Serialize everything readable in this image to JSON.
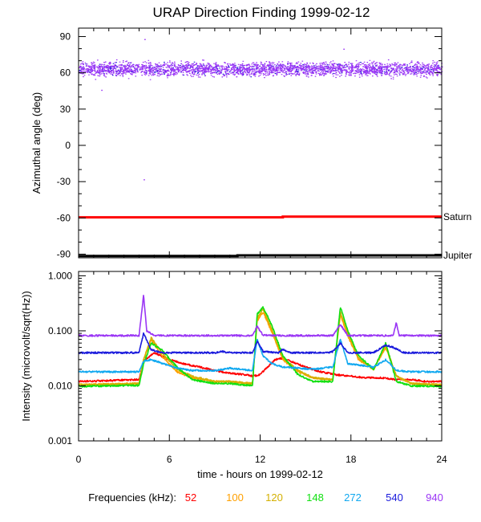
{
  "title": "URAP Direction Finding  1999-02-12",
  "chart_data": [
    {
      "type": "scatter",
      "panel": "azimuth",
      "ylabel": "Azimuthal angle (deg)",
      "xlim": [
        0,
        24
      ],
      "ylim": [
        -93,
        97
      ],
      "yticks": [
        90,
        60,
        30,
        0,
        -30,
        -60,
        -90
      ],
      "ytick_labels": [
        "90",
        "60",
        "30",
        "0",
        "-30",
        "-60",
        "-90"
      ],
      "series": [
        {
          "name": "940",
          "color": "#9a35f5",
          "mean": 63,
          "spread": 6
        },
        {
          "name": "540",
          "color": "#1a1adc",
          "mean": 63,
          "spread": 5
        }
      ],
      "reference_lines": [
        {
          "label": "Saturn",
          "color": "#ff0000",
          "x": [
            0,
            13.5,
            13.5,
            24
          ],
          "y": [
            -59.5,
            -59.5,
            -59,
            -59
          ]
        },
        {
          "label": "Jupiter",
          "color": "#000000",
          "x": [
            0,
            10.5,
            10.5,
            24
          ],
          "y": [
            -91.5,
            -91.5,
            -91,
            -91
          ]
        }
      ]
    },
    {
      "type": "line",
      "panel": "intensity",
      "ylabel": "Intensity (microvolt/sqrt(Hz))",
      "xlabel": "time - hours on 1999-02-12",
      "xlim": [
        0,
        24
      ],
      "xticks": [
        0,
        6,
        12,
        18,
        24
      ],
      "xtick_labels": [
        "0",
        "6",
        "12",
        "18",
        "24"
      ],
      "yscale": "log",
      "ylim": [
        0.001,
        1.2
      ],
      "yticks": [
        1,
        0.1,
        0.01,
        0.001
      ],
      "ytick_labels": [
        "1.000",
        "0.100",
        "0.010",
        "0.001"
      ],
      "legend_label": "Frequencies (kHz):",
      "series": [
        {
          "name": "52",
          "color": "#ff0000",
          "x": [
            0,
            4,
            4.3,
            5,
            6,
            7,
            8,
            9,
            10,
            11,
            11.5,
            12,
            12.5,
            13,
            13.5,
            14,
            15,
            16,
            17,
            18,
            19,
            20,
            21,
            22,
            23,
            24
          ],
          "y": [
            0.012,
            0.013,
            0.028,
            0.04,
            0.03,
            0.025,
            0.022,
            0.019,
            0.017,
            0.016,
            0.015,
            0.016,
            0.022,
            0.03,
            0.032,
            0.028,
            0.022,
            0.018,
            0.016,
            0.015,
            0.014,
            0.014,
            0.013,
            0.013,
            0.012,
            0.012
          ]
        },
        {
          "name": "100",
          "color": "#ffa000",
          "x": [
            0,
            4,
            4.3,
            4.8,
            5.5,
            6.5,
            7.5,
            9,
            10,
            11.5,
            11.8,
            12.2,
            12.8,
            13.5,
            14.5,
            15.5,
            16.8,
            17.3,
            17.8,
            18.5,
            19.5,
            20.3,
            21,
            22,
            24
          ],
          "y": [
            0.0105,
            0.011,
            0.03,
            0.07,
            0.035,
            0.018,
            0.014,
            0.012,
            0.012,
            0.011,
            0.15,
            0.22,
            0.09,
            0.03,
            0.018,
            0.014,
            0.013,
            0.2,
            0.08,
            0.03,
            0.02,
            0.05,
            0.015,
            0.011,
            0.0105
          ]
        },
        {
          "name": "120",
          "color": "#d4b000",
          "x": [
            0,
            4,
            4.3,
            4.8,
            5.5,
            6.5,
            7.5,
            9,
            10,
            11.5,
            11.8,
            12.2,
            12.8,
            13.5,
            14.5,
            15.5,
            16.8,
            17.3,
            17.8,
            18.5,
            19.5,
            20.3,
            21,
            22,
            24
          ],
          "y": [
            0.0105,
            0.011,
            0.03,
            0.075,
            0.04,
            0.02,
            0.015,
            0.012,
            0.012,
            0.011,
            0.17,
            0.25,
            0.1,
            0.032,
            0.019,
            0.014,
            0.013,
            0.22,
            0.09,
            0.032,
            0.02,
            0.055,
            0.015,
            0.011,
            0.0105
          ]
        },
        {
          "name": "148",
          "color": "#10e010",
          "x": [
            0,
            4,
            4.3,
            4.8,
            5.5,
            6.5,
            7.5,
            9,
            10,
            11.5,
            11.8,
            12.2,
            12.8,
            13.5,
            14.5,
            15.5,
            16.8,
            17.3,
            17.8,
            18.5,
            19.5,
            20.3,
            21,
            22,
            24
          ],
          "y": [
            0.0098,
            0.0102,
            0.025,
            0.06,
            0.045,
            0.022,
            0.013,
            0.011,
            0.011,
            0.01,
            0.2,
            0.27,
            0.12,
            0.035,
            0.016,
            0.012,
            0.012,
            0.27,
            0.1,
            0.035,
            0.02,
            0.06,
            0.012,
            0.01,
            0.0098
          ]
        },
        {
          "name": "272",
          "color": "#10a8f0",
          "x": [
            0,
            4,
            4.3,
            4.8,
            5.5,
            6.5,
            7.5,
            9,
            10,
            11.5,
            11.8,
            12.2,
            12.8,
            13.5,
            14.5,
            15.5,
            16.8,
            17.3,
            17.8,
            18.5,
            19.5,
            20.3,
            21,
            22,
            24
          ],
          "y": [
            0.018,
            0.018,
            0.028,
            0.03,
            0.026,
            0.021,
            0.019,
            0.019,
            0.021,
            0.019,
            0.07,
            0.035,
            0.025,
            0.022,
            0.021,
            0.02,
            0.022,
            0.07,
            0.025,
            0.024,
            0.022,
            0.03,
            0.019,
            0.018,
            0.018
          ]
        },
        {
          "name": "540",
          "color": "#1a1adc",
          "x": [
            0,
            4,
            4.3,
            4.8,
            5.5,
            6.5,
            9,
            9.5,
            10,
            11.5,
            11.8,
            12.2,
            13.2,
            13.5,
            14,
            16.5,
            16.8,
            17.3,
            17.8,
            19.5,
            20.3,
            20.8,
            21.5,
            24
          ],
          "y": [
            0.04,
            0.04,
            0.09,
            0.045,
            0.04,
            0.04,
            0.04,
            0.042,
            0.04,
            0.04,
            0.065,
            0.042,
            0.04,
            0.046,
            0.04,
            0.04,
            0.042,
            0.06,
            0.04,
            0.04,
            0.055,
            0.05,
            0.04,
            0.04
          ]
        },
        {
          "name": "940",
          "color": "#9a35f5",
          "x": [
            0,
            4,
            4.3,
            4.5,
            5,
            11.5,
            11.8,
            12.2,
            13,
            16.8,
            17.3,
            17.8,
            20.8,
            21,
            21.2,
            24
          ],
          "y": [
            0.082,
            0.082,
            0.45,
            0.1,
            0.082,
            0.082,
            0.12,
            0.083,
            0.082,
            0.082,
            0.13,
            0.082,
            0.082,
            0.14,
            0.082,
            0.082
          ]
        }
      ]
    }
  ]
}
